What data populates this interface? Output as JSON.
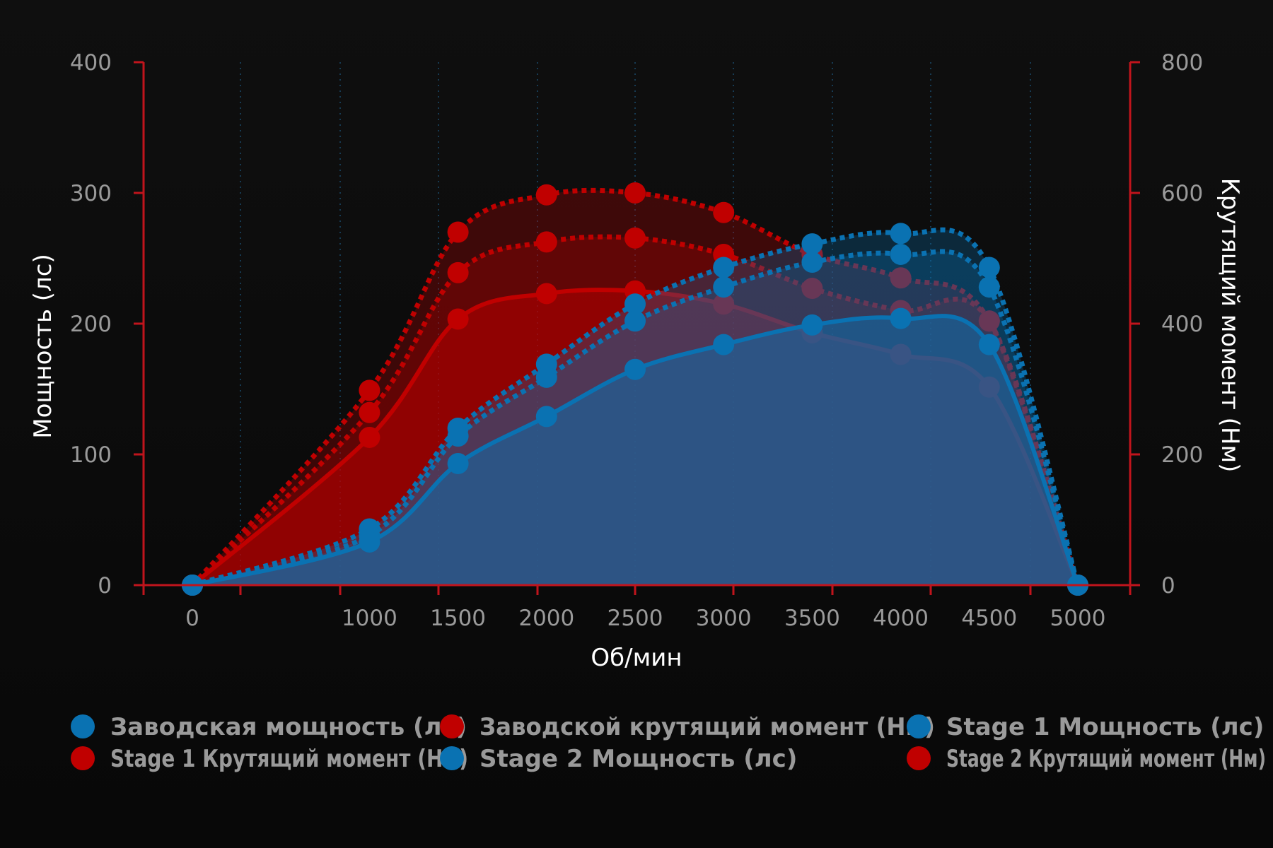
{
  "chart_data": {
    "type": "line",
    "xlabel": "Об/мин",
    "ylabel_left": "Мощность (лс)",
    "ylabel_right": "Крутящий момент (Нм)",
    "x": [
      0,
      1000,
      1500,
      2000,
      2500,
      3000,
      3500,
      4000,
      4500,
      5000
    ],
    "xlim": [
      -500,
      5500
    ],
    "ylim_left": [
      0,
      400
    ],
    "ylim_right": [
      0,
      800
    ],
    "yticks_left": [
      0,
      100,
      200,
      300,
      400
    ],
    "yticks_right": [
      0,
      200,
      400,
      600,
      800
    ],
    "grid": "vertical dotted",
    "legend_position": "bottom",
    "colors": {
      "power": "#0a72b2",
      "torque": "#c00000",
      "axis": "#c0141c"
    },
    "series": [
      {
        "name": "Заводская мощность (лс)",
        "axis": "left",
        "color": "#0a72b2",
        "style": "solid",
        "values": [
          0,
          33,
          93,
          129,
          165,
          184,
          199,
          204,
          184,
          0
        ]
      },
      {
        "name": "Заводской крутящий момент (Нм)",
        "axis": "right",
        "color": "#c00000",
        "style": "solid",
        "values": [
          0,
          226,
          407,
          446,
          450,
          430,
          386,
          353,
          303,
          0
        ]
      },
      {
        "name": "Stage 1 Мощность (лс)",
        "axis": "left",
        "color": "#0a72b2",
        "style": "dotted",
        "values": [
          0,
          38,
          114,
          159,
          202,
          228,
          247,
          253,
          228,
          0
        ]
      },
      {
        "name": "Stage 1 Крутящий момент (Нм)",
        "axis": "right",
        "color": "#c00000",
        "style": "dotted",
        "values": [
          0,
          264,
          478,
          525,
          531,
          506,
          454,
          420,
          404,
          0
        ]
      },
      {
        "name": "Stage 2 Мощность (лс)",
        "axis": "left",
        "color": "#0a72b2",
        "style": "dotted",
        "values": [
          0,
          43,
          120,
          169,
          215,
          243,
          261,
          269,
          243,
          0
        ]
      },
      {
        "name": "Stage 2 Крутящий момент (Нм)",
        "axis": "right",
        "color": "#c00000",
        "style": "dotted",
        "values": [
          0,
          298,
          540,
          597,
          600,
          570,
          506,
          470,
          404,
          0
        ]
      }
    ]
  }
}
